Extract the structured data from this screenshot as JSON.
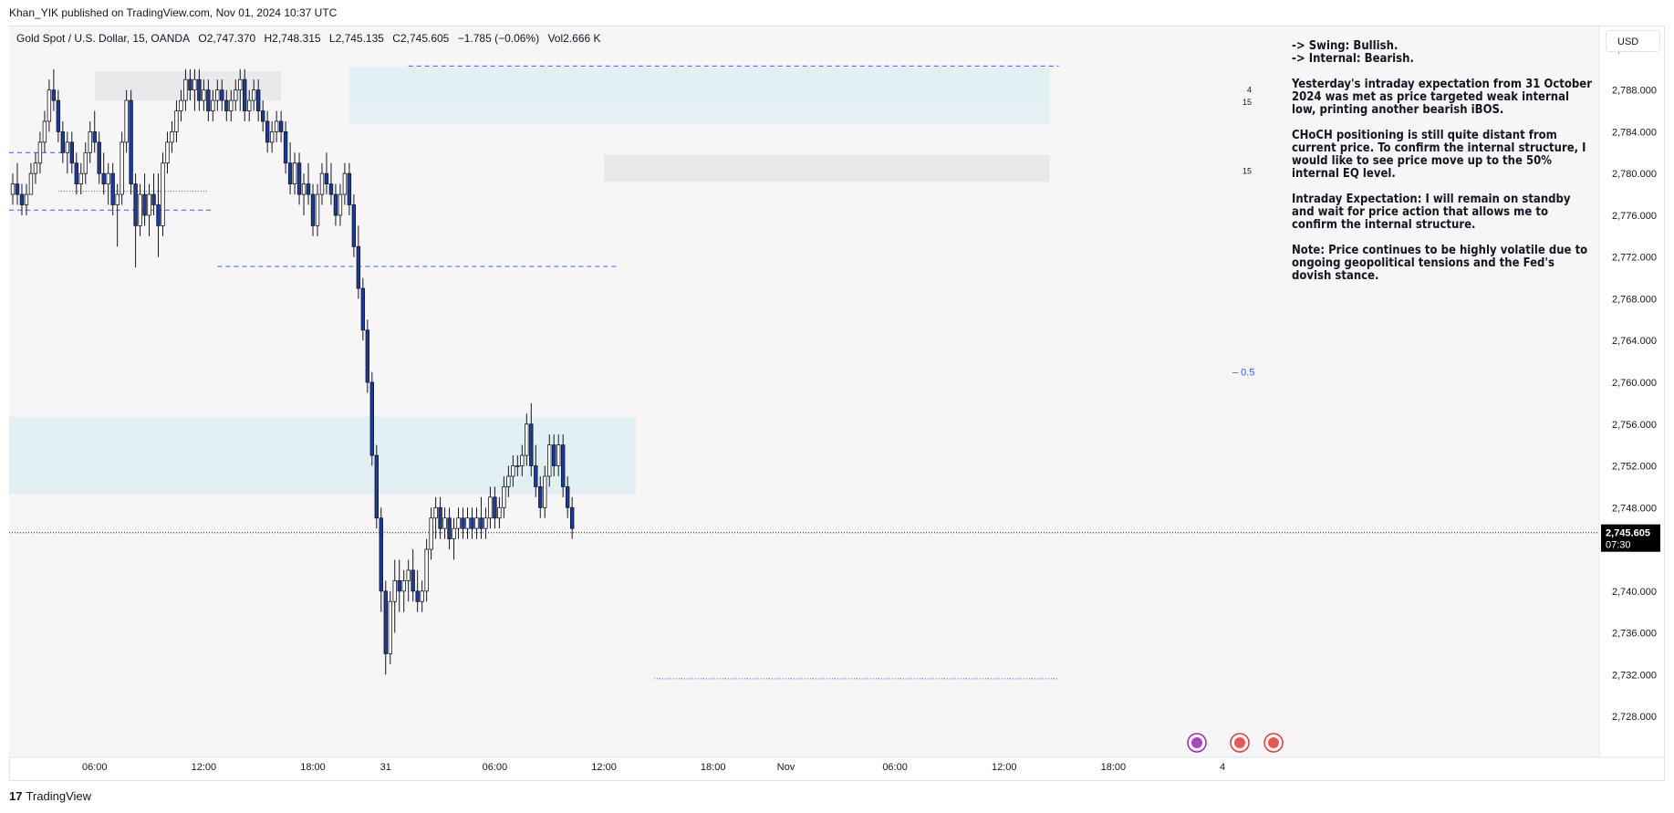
{
  "meta": {
    "publisher": "Khan_YIK published on TradingView.com, Nov 01, 2024 10:37 UTC",
    "brand": "TradingView",
    "brand_logo": "17",
    "currency": "USD"
  },
  "legend": {
    "symbol": "Gold Spot / U.S. Dollar, 15, OANDA",
    "open": "O2,747.370",
    "high": "H2,748.315",
    "low": "L2,745.135",
    "close": "C2,745.605",
    "change": "−1.785 (−0.06%)",
    "volume": "Vol2.666 K"
  },
  "notes": [
    "-> Swing:  Bullish.\n-> Internal:  Bearish.",
    "Yesterday's intraday expectation from 31 October 2024 was met as price targeted weak internal low, printing another bearish iBOS.",
    "CHoCH positioning is still quite distant from current price. To confirm the internal structure, I would like to see price move up to the 50% internal EQ level.",
    "Intraday Expectation: I will remain on standby and wait for price action that allows me to confirm the internal structure.",
    "Note: Price continues to be highly volatile due to ongoing geopolitical tensions and the Fed's dovish stance."
  ],
  "colors": {
    "bull": "#ffffff",
    "bear": "#1b3a9e",
    "wick": "#131722",
    "zone_blue": "#e3f0f3",
    "zone_gray": "#e9e9ec",
    "dash": "#2962ff",
    "bg": "#f8f5f7",
    "price_tag": "#000000"
  },
  "chart_data": {
    "type": "candlestick",
    "ylim": [
      2726,
      2794
    ],
    "y_ticks": [
      "2,792.000",
      "2,788.000",
      "2,784.000",
      "2,780.000",
      "2,776.000",
      "2,772.000",
      "2,768.000",
      "2,764.000",
      "2,760.000",
      "2,756.000",
      "2,752.000",
      "2,748.000",
      "2,744.000",
      "2,740.000",
      "2,736.000",
      "2,732.000",
      "2,728.000"
    ],
    "y_tick_values": [
      2792,
      2788,
      2784,
      2780,
      2776,
      2772,
      2768,
      2764,
      2760,
      2756,
      2752,
      2748,
      2744,
      2740,
      2736,
      2732,
      2728
    ],
    "x_ticks": [
      "06:00",
      "12:00",
      "18:00",
      "31",
      "06:00",
      "12:00",
      "18:00",
      "Nov",
      "06:00",
      "12:00",
      "18:00",
      "4"
    ],
    "x_tick_index": [
      18,
      42,
      66,
      82,
      106,
      130,
      154,
      170,
      194,
      218,
      242,
      266
    ],
    "current_price": "2,745.605",
    "current_price_value": 2745.605,
    "countdown": "07:30",
    "eq_label": "0.5",
    "eq_level": 2761.0,
    "zone_labels": [
      "4",
      "15",
      "15"
    ],
    "zones": [
      {
        "kind": "gray",
        "x0": 18,
        "x1": 59,
        "y0": 2787.0,
        "y1": 2789.8
      },
      {
        "kind": "blue",
        "x0": 74,
        "x1": 228,
        "y0": 2784.8,
        "y1": 2790.2
      },
      {
        "kind": "blue",
        "x0": 74,
        "x1": 228,
        "y0": 2784.8,
        "y1": 2786.6
      },
      {
        "kind": "gray",
        "x0": 130,
        "x1": 228,
        "y0": 2779.2,
        "y1": 2781.8
      },
      {
        "kind": "blue",
        "x0": 0,
        "x1": 137,
        "y0": 2749.3,
        "y1": 2756.7
      }
    ],
    "levels": [
      {
        "style": "dash",
        "x0": 87,
        "x1": 230,
        "y": 2790.3
      },
      {
        "style": "dash",
        "x0": 0,
        "x1": 12,
        "y": 2782.0
      },
      {
        "style": "dot",
        "x0": 10,
        "x1": 43,
        "y": 2778.3
      },
      {
        "style": "dash",
        "x0": 0,
        "x1": 44,
        "y": 2776.5
      },
      {
        "style": "dash",
        "x0": 45,
        "x1": 133,
        "y": 2771.1
      },
      {
        "style": "dot",
        "x0": 0,
        "x1": 290,
        "y": 2745.6
      },
      {
        "style": "dot",
        "x0": 141,
        "x1": 230,
        "y": 2731.6
      }
    ],
    "candles": [
      [
        2778,
        2780,
        2777,
        2779
      ],
      [
        2779,
        2781,
        2777,
        2778
      ],
      [
        2778,
        2779,
        2776,
        2777
      ],
      [
        2777,
        2779,
        2776,
        2778
      ],
      [
        2778,
        2781,
        2778,
        2780
      ],
      [
        2780,
        2782,
        2779,
        2781
      ],
      [
        2781,
        2784,
        2780,
        2783
      ],
      [
        2783,
        2786,
        2782,
        2785
      ],
      [
        2785,
        2789,
        2784,
        2788
      ],
      [
        2788,
        2790,
        2786,
        2787
      ],
      [
        2787,
        2788,
        2783,
        2784
      ],
      [
        2784,
        2785,
        2781,
        2782
      ],
      [
        2782,
        2784,
        2780,
        2783
      ],
      [
        2783,
        2784,
        2780,
        2781
      ],
      [
        2781,
        2782,
        2778,
        2779
      ],
      [
        2779,
        2781,
        2778,
        2780
      ],
      [
        2780,
        2783,
        2779,
        2782
      ],
      [
        2782,
        2785,
        2781,
        2784
      ],
      [
        2784,
        2786,
        2782,
        2783
      ],
      [
        2783,
        2784,
        2779,
        2780
      ],
      [
        2780,
        2782,
        2778,
        2779
      ],
      [
        2779,
        2781,
        2777,
        2780
      ],
      [
        2780,
        2781,
        2776,
        2777
      ],
      [
        2777,
        2779,
        2773,
        2778
      ],
      [
        2778,
        2784,
        2777,
        2783
      ],
      [
        2783,
        2788,
        2782,
        2787
      ],
      [
        2787,
        2788,
        2778,
        2779
      ],
      [
        2779,
        2780,
        2771,
        2775
      ],
      [
        2775,
        2779,
        2774,
        2778
      ],
      [
        2778,
        2780,
        2775,
        2776
      ],
      [
        2776,
        2779,
        2774,
        2778
      ],
      [
        2778,
        2780,
        2776,
        2777
      ],
      [
        2777,
        2780,
        2772,
        2775
      ],
      [
        2775,
        2782,
        2774,
        2781
      ],
      [
        2781,
        2784,
        2780,
        2783
      ],
      [
        2783,
        2785,
        2782,
        2784
      ],
      [
        2784,
        2787,
        2783,
        2786
      ],
      [
        2786,
        2788,
        2785,
        2787
      ],
      [
        2787,
        2790,
        2786,
        2789
      ],
      [
        2789,
        2790,
        2787,
        2788
      ],
      [
        2788,
        2790,
        2786,
        2789
      ],
      [
        2789,
        2790,
        2786,
        2787
      ],
      [
        2787,
        2789,
        2786,
        2788
      ],
      [
        2788,
        2789,
        2785,
        2786
      ],
      [
        2786,
        2788,
        2785,
        2787
      ],
      [
        2787,
        2789,
        2786,
        2788
      ],
      [
        2788,
        2789,
        2786,
        2787
      ],
      [
        2787,
        2788,
        2785,
        2786
      ],
      [
        2786,
        2788,
        2785,
        2787
      ],
      [
        2787,
        2789,
        2786,
        2788
      ],
      [
        2788,
        2790,
        2786,
        2789
      ],
      [
        2789,
        2790,
        2785,
        2786
      ],
      [
        2786,
        2788,
        2785,
        2787
      ],
      [
        2787,
        2789,
        2786,
        2788
      ],
      [
        2788,
        2789,
        2785,
        2786
      ],
      [
        2786,
        2787,
        2784,
        2785
      ],
      [
        2785,
        2786,
        2782,
        2783
      ],
      [
        2783,
        2785,
        2782,
        2784
      ],
      [
        2784,
        2786,
        2783,
        2785
      ],
      [
        2785,
        2786,
        2783,
        2784
      ],
      [
        2784,
        2785,
        2780,
        2781
      ],
      [
        2781,
        2783,
        2778,
        2779
      ],
      [
        2779,
        2782,
        2778,
        2781
      ],
      [
        2781,
        2782,
        2777,
        2778
      ],
      [
        2778,
        2780,
        2776,
        2779
      ],
      [
        2779,
        2781,
        2777,
        2778
      ],
      [
        2778,
        2779,
        2774,
        2775
      ],
      [
        2775,
        2779,
        2774,
        2778
      ],
      [
        2778,
        2781,
        2777,
        2780
      ],
      [
        2780,
        2782,
        2778,
        2779
      ],
      [
        2779,
        2781,
        2777,
        2778
      ],
      [
        2778,
        2779,
        2775,
        2776
      ],
      [
        2776,
        2779,
        2775,
        2778
      ],
      [
        2778,
        2781,
        2777,
        2780
      ],
      [
        2780,
        2781,
        2776,
        2777
      ],
      [
        2777,
        2778,
        2772,
        2773
      ],
      [
        2773,
        2775,
        2768,
        2769
      ],
      [
        2769,
        2770,
        2764,
        2765
      ],
      [
        2765,
        2766,
        2759,
        2760
      ],
      [
        2760,
        2761,
        2752,
        2753
      ],
      [
        2753,
        2754,
        2746,
        2747
      ],
      [
        2747,
        2748,
        2738,
        2740
      ],
      [
        2740,
        2741,
        2732,
        2734
      ],
      [
        2734,
        2740,
        2733,
        2739
      ],
      [
        2739,
        2743,
        2736,
        2741
      ],
      [
        2741,
        2743,
        2738,
        2740
      ],
      [
        2740,
        2742,
        2738,
        2741
      ],
      [
        2741,
        2743,
        2739,
        2742
      ],
      [
        2742,
        2744,
        2739,
        2740
      ],
      [
        2740,
        2742,
        2738,
        2739
      ],
      [
        2739,
        2741,
        2738,
        2740
      ],
      [
        2740,
        2745,
        2739,
        2744
      ],
      [
        2744,
        2748,
        2743,
        2747
      ],
      [
        2747,
        2749,
        2745,
        2748
      ],
      [
        2748,
        2749,
        2745,
        2746
      ],
      [
        2746,
        2748,
        2745,
        2747
      ],
      [
        2747,
        2748,
        2744,
        2745
      ],
      [
        2745,
        2747,
        2743,
        2746
      ],
      [
        2746,
        2748,
        2745,
        2747
      ],
      [
        2747,
        2748,
        2745,
        2746
      ],
      [
        2746,
        2748,
        2745,
        2747
      ],
      [
        2747,
        2748,
        2745,
        2746
      ],
      [
        2746,
        2748,
        2745,
        2747
      ],
      [
        2747,
        2749,
        2745,
        2746
      ],
      [
        2746,
        2748,
        2745,
        2747
      ],
      [
        2747,
        2750,
        2746,
        2749
      ],
      [
        2749,
        2750,
        2746,
        2747
      ],
      [
        2747,
        2749,
        2746,
        2748
      ],
      [
        2748,
        2751,
        2747,
        2750
      ],
      [
        2750,
        2752,
        2749,
        2751
      ],
      [
        2751,
        2753,
        2750,
        2752
      ],
      [
        2752,
        2753,
        2751,
        2752
      ],
      [
        2752,
        2754,
        2751,
        2753
      ],
      [
        2753,
        2757,
        2752,
        2756
      ],
      [
        2756,
        2758,
        2751,
        2752
      ],
      [
        2752,
        2754,
        2749,
        2750
      ],
      [
        2750,
        2751,
        2747,
        2748
      ],
      [
        2748,
        2752,
        2747,
        2751
      ],
      [
        2751,
        2755,
        2750,
        2754
      ],
      [
        2754,
        2755,
        2751,
        2752
      ],
      [
        2752,
        2755,
        2751,
        2754
      ],
      [
        2754,
        2755,
        2749,
        2750
      ],
      [
        2750,
        2751,
        2747,
        2748
      ],
      [
        2748,
        2749,
        2745,
        2746
      ]
    ]
  }
}
